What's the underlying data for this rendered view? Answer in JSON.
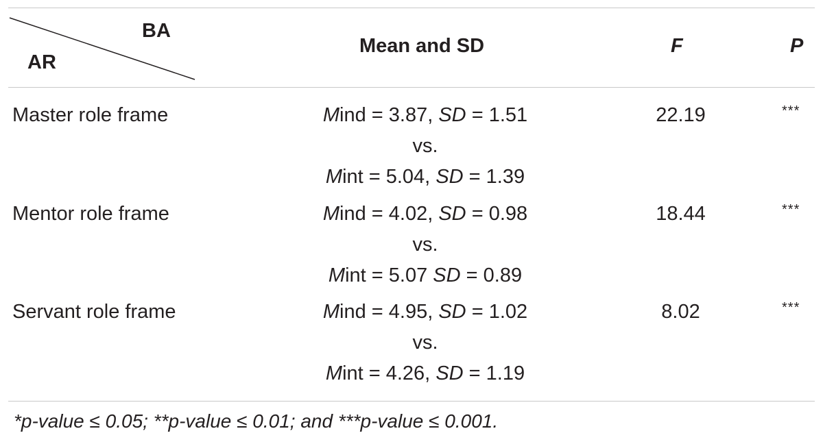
{
  "header": {
    "corner_top": "BA",
    "corner_bottom": "AR",
    "mean_sd": "Mean and SD",
    "f": "F",
    "p": "P"
  },
  "rows": [
    {
      "label": "Master role frame",
      "ind_prefix": "M",
      "ind_suffix": "ind = 3.87, ",
      "ind_sd_label": "SD",
      "ind_sd_value": " = 1.51",
      "vs": "vs.",
      "int_prefix": "M",
      "int_suffix": "int = 5.04, ",
      "int_sd_label": "SD",
      "int_sd_value": " = 1.39",
      "f": "22.19",
      "p": "***"
    },
    {
      "label": "Mentor role frame",
      "ind_prefix": "M",
      "ind_suffix": "ind = 4.02, ",
      "ind_sd_label": "SD",
      "ind_sd_value": " = 0.98",
      "vs": "vs.",
      "int_prefix": "M",
      "int_suffix": "int = 5.07 ",
      "int_sd_label": "SD",
      "int_sd_value": " = 0.89",
      "f": "18.44",
      "p": "***"
    },
    {
      "label": "Servant role frame",
      "ind_prefix": "M",
      "ind_suffix": "ind = 4.95, ",
      "ind_sd_label": "SD",
      "ind_sd_value": " = 1.02",
      "vs": "vs.",
      "int_prefix": "M",
      "int_suffix": "int = 4.26, ",
      "int_sd_label": "SD",
      "int_sd_value": " = 1.19",
      "f": "8.02",
      "p": "***"
    }
  ],
  "footnote": "*p-value ≤ 0.05; **p-value ≤ 0.01; and ***p-value ≤ 0.001."
}
